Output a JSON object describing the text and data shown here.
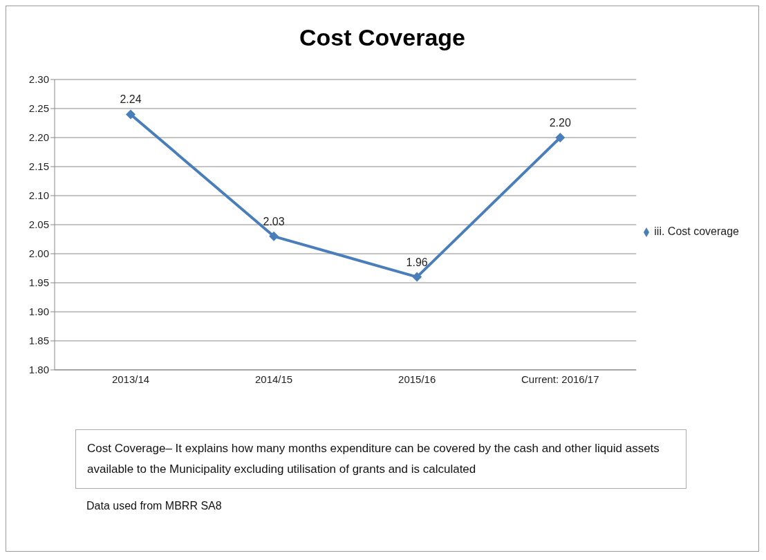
{
  "chart_data": {
    "type": "line",
    "title": "Cost Coverage",
    "categories": [
      "2013/14",
      "2014/15",
      "2015/16",
      "Current: 2016/17"
    ],
    "series": [
      {
        "name": "iii. Cost coverage",
        "color": "#4a7ebb",
        "values": [
          2.24,
          2.03,
          1.96,
          2.2
        ],
        "value_labels": [
          "2.24",
          "2.03",
          "1.96",
          "2.20"
        ]
      }
    ],
    "ylim": [
      1.8,
      2.3
    ],
    "yticks": [
      {
        "value": 1.8,
        "label": "1.80"
      },
      {
        "value": 1.85,
        "label": "1.85"
      },
      {
        "value": 1.9,
        "label": "1.90"
      },
      {
        "value": 1.95,
        "label": "1.95"
      },
      {
        "value": 2.0,
        "label": "2.00"
      },
      {
        "value": 2.05,
        "label": "2.05"
      },
      {
        "value": 2.1,
        "label": "2.10"
      },
      {
        "value": 2.15,
        "label": "2.15"
      },
      {
        "value": 2.2,
        "label": "2.20"
      },
      {
        "value": 2.25,
        "label": "2.25"
      },
      {
        "value": 2.3,
        "label": "2.30"
      }
    ],
    "grid": "y",
    "legend": "right",
    "marker": "diamond",
    "line_style": "solid",
    "annotations": [
      "Cost Coverage– It explains how many months expenditure can be covered by the  cash and other liquid assets available to the Municipality excluding utilisation of grants and is calculated",
      "Data used from MBRR SA8"
    ]
  }
}
